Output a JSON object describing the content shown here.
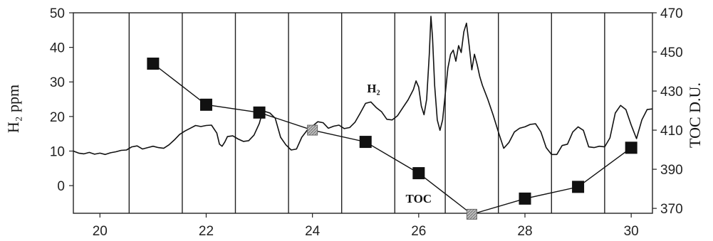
{
  "chart_data": {
    "type": "line",
    "title": "",
    "xlabel": "",
    "ylabel": "H₂ ppm",
    "y2label": "TOC D.U.",
    "xlim": [
      19.5,
      30.4
    ],
    "ylim": [
      -8,
      50
    ],
    "y2lim": [
      367.5,
      470
    ],
    "x_ticks": [
      20,
      22,
      24,
      26,
      28,
      30
    ],
    "y_ticks": [
      0,
      10,
      20,
      30,
      40,
      50
    ],
    "y2_ticks": [
      370,
      390,
      410,
      430,
      450,
      470
    ],
    "grid": "vertical",
    "grid_x": [
      20.55,
      21.55,
      22.55,
      23.55,
      24.55,
      25.55,
      26.5,
      27.5,
      28.5,
      29.5
    ],
    "series": [
      {
        "name": "H₂",
        "axis": "left",
        "color": "#111111",
        "marker": "none",
        "label_at": [
          25.15,
          27
        ],
        "points": [
          [
            19.5,
            10.0
          ],
          [
            19.6,
            9.4
          ],
          [
            19.7,
            9.2
          ],
          [
            19.8,
            9.6
          ],
          [
            19.9,
            9.1
          ],
          [
            20.0,
            9.4
          ],
          [
            20.1,
            9.0
          ],
          [
            20.2,
            9.5
          ],
          [
            20.3,
            9.8
          ],
          [
            20.4,
            10.2
          ],
          [
            20.5,
            10.3
          ],
          [
            20.6,
            11.2
          ],
          [
            20.7,
            11.5
          ],
          [
            20.8,
            10.6
          ],
          [
            20.9,
            11.0
          ],
          [
            21.0,
            11.4
          ],
          [
            21.1,
            11.0
          ],
          [
            21.2,
            10.8
          ],
          [
            21.3,
            11.8
          ],
          [
            21.4,
            13.2
          ],
          [
            21.5,
            14.8
          ],
          [
            21.6,
            15.8
          ],
          [
            21.7,
            16.6
          ],
          [
            21.8,
            17.4
          ],
          [
            21.9,
            17.1
          ],
          [
            22.0,
            17.4
          ],
          [
            22.1,
            17.5
          ],
          [
            22.2,
            15.2
          ],
          [
            22.25,
            12.0
          ],
          [
            22.3,
            11.4
          ],
          [
            22.35,
            12.6
          ],
          [
            22.4,
            14.2
          ],
          [
            22.5,
            14.4
          ],
          [
            22.6,
            13.5
          ],
          [
            22.7,
            12.8
          ],
          [
            22.8,
            13.0
          ],
          [
            22.9,
            14.6
          ],
          [
            23.0,
            18.0
          ],
          [
            23.05,
            20.8
          ],
          [
            23.1,
            21.5
          ],
          [
            23.2,
            21.0
          ],
          [
            23.3,
            19.5
          ],
          [
            23.4,
            14.0
          ],
          [
            23.5,
            11.8
          ],
          [
            23.6,
            10.3
          ],
          [
            23.7,
            10.6
          ],
          [
            23.8,
            14.0
          ],
          [
            23.9,
            16.0
          ],
          [
            24.0,
            17.2
          ],
          [
            24.1,
            18.5
          ],
          [
            24.2,
            18.2
          ],
          [
            24.3,
            16.6
          ],
          [
            24.4,
            17.2
          ],
          [
            24.5,
            17.5
          ],
          [
            24.6,
            16.5
          ],
          [
            24.7,
            16.8
          ],
          [
            24.8,
            18.3
          ],
          [
            24.9,
            21.0
          ],
          [
            25.0,
            23.8
          ],
          [
            25.1,
            24.2
          ],
          [
            25.2,
            22.6
          ],
          [
            25.3,
            21.4
          ],
          [
            25.4,
            19.2
          ],
          [
            25.5,
            19.0
          ],
          [
            25.6,
            20.2
          ],
          [
            25.7,
            22.5
          ],
          [
            25.8,
            24.8
          ],
          [
            25.9,
            27.8
          ],
          [
            25.95,
            30.3
          ],
          [
            26.0,
            28.5
          ],
          [
            26.05,
            23.0
          ],
          [
            26.1,
            20.5
          ],
          [
            26.15,
            25.0
          ],
          [
            26.2,
            38.0
          ],
          [
            26.23,
            49.0
          ],
          [
            26.26,
            43.0
          ],
          [
            26.3,
            29.0
          ],
          [
            26.35,
            19.0
          ],
          [
            26.4,
            16.0
          ],
          [
            26.45,
            19.0
          ],
          [
            26.5,
            26.5
          ],
          [
            26.55,
            34.0
          ],
          [
            26.6,
            38.0
          ],
          [
            26.65,
            39.2
          ],
          [
            26.7,
            36.0
          ],
          [
            26.75,
            40.5
          ],
          [
            26.8,
            38.5
          ],
          [
            26.85,
            44.5
          ],
          [
            26.9,
            47.0
          ],
          [
            26.95,
            40.5
          ],
          [
            27.0,
            33.5
          ],
          [
            27.05,
            38.0
          ],
          [
            27.1,
            35.0
          ],
          [
            27.15,
            31.5
          ],
          [
            27.2,
            29.0
          ],
          [
            27.3,
            25.0
          ],
          [
            27.4,
            20.5
          ],
          [
            27.5,
            15.5
          ],
          [
            27.6,
            10.8
          ],
          [
            27.7,
            12.5
          ],
          [
            27.8,
            15.5
          ],
          [
            27.9,
            16.6
          ],
          [
            28.0,
            17.0
          ],
          [
            28.1,
            17.7
          ],
          [
            28.2,
            17.9
          ],
          [
            28.3,
            15.5
          ],
          [
            28.4,
            11.0
          ],
          [
            28.5,
            9.0
          ],
          [
            28.6,
            9.0
          ],
          [
            28.7,
            11.6
          ],
          [
            28.8,
            12.0
          ],
          [
            28.9,
            15.5
          ],
          [
            29.0,
            17.0
          ],
          [
            29.1,
            16.0
          ],
          [
            29.2,
            11.2
          ],
          [
            29.3,
            11.0
          ],
          [
            29.4,
            11.4
          ],
          [
            29.5,
            11.2
          ],
          [
            29.6,
            13.8
          ],
          [
            29.7,
            21.0
          ],
          [
            29.8,
            23.2
          ],
          [
            29.9,
            22.0
          ],
          [
            30.0,
            17.5
          ],
          [
            30.1,
            13.6
          ],
          [
            30.2,
            19.0
          ],
          [
            30.3,
            22.0
          ],
          [
            30.4,
            22.2
          ]
        ]
      },
      {
        "name": "TOC",
        "axis": "right",
        "color": "#111111",
        "marker": "square",
        "label_at": [
          26.0,
          373
        ],
        "points": [
          [
            21,
            444,
            "solid"
          ],
          [
            22,
            423,
            "solid"
          ],
          [
            23,
            419,
            "solid"
          ],
          [
            24,
            410,
            "hatched"
          ],
          [
            25,
            404,
            "solid"
          ],
          [
            26,
            388,
            "solid"
          ],
          [
            27,
            367,
            "hatched"
          ],
          [
            28,
            375,
            "solid"
          ],
          [
            29,
            381,
            "solid"
          ],
          [
            30,
            401,
            "solid"
          ]
        ]
      }
    ]
  }
}
